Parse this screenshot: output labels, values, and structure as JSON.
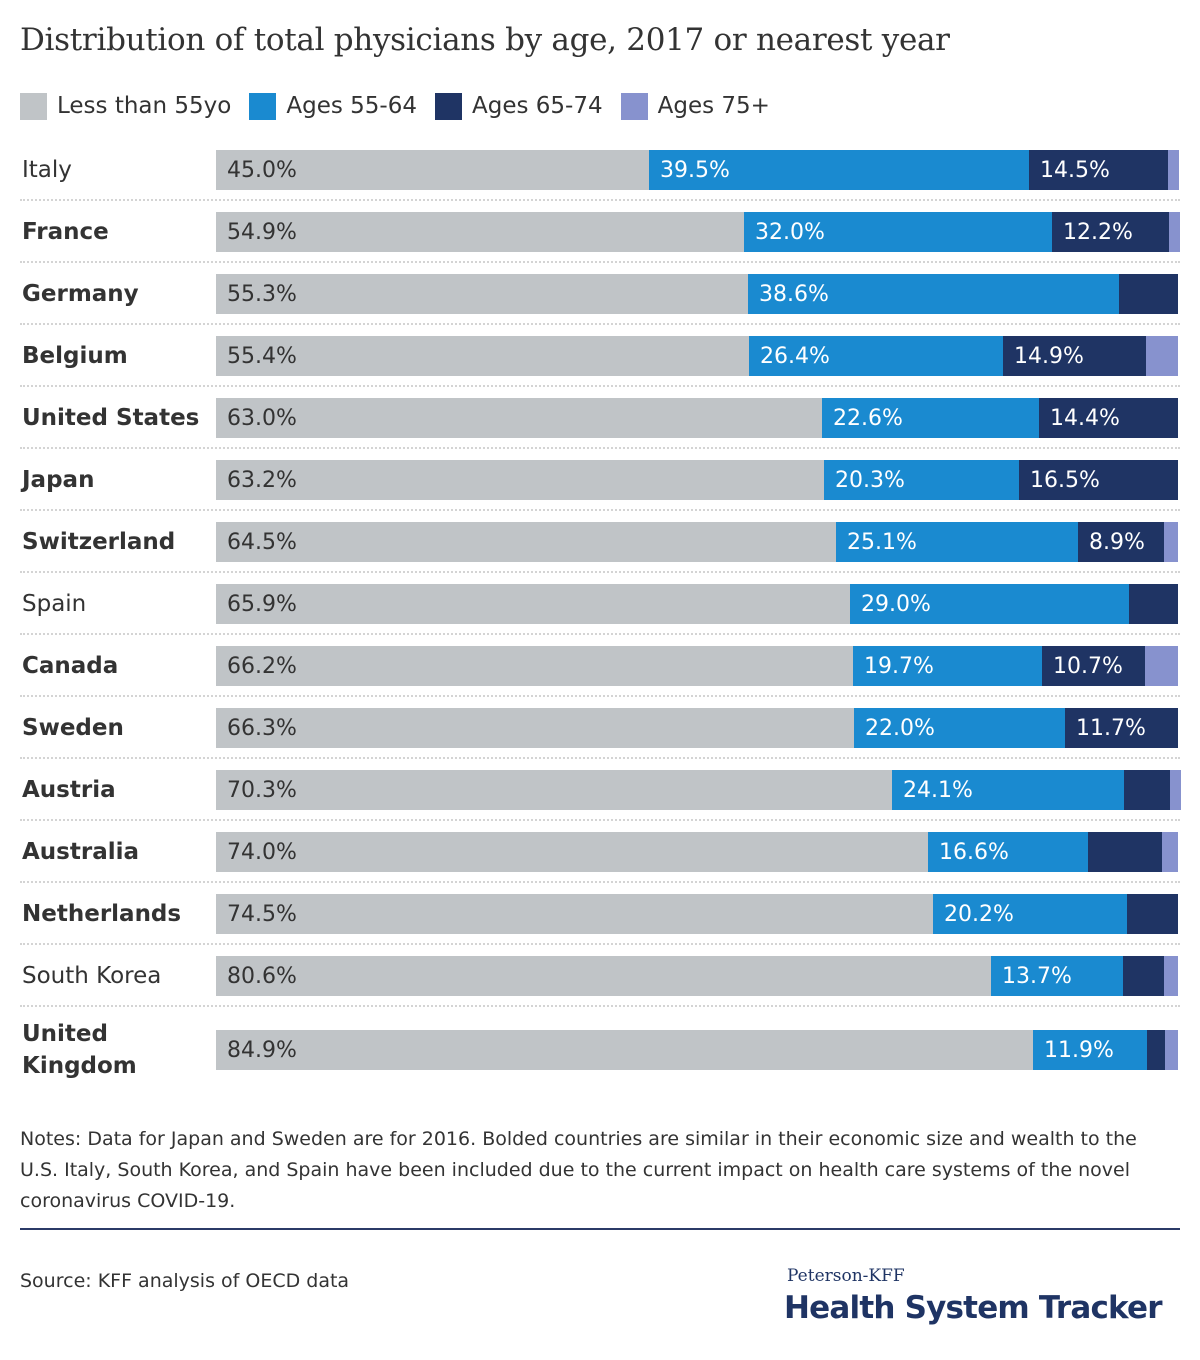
{
  "title": "Distribution of total physicians by age, 2017 or nearest year",
  "chart_data": {
    "type": "bar",
    "orientation": "horizontal",
    "stacked": true,
    "title": "Distribution of total physicians by age, 2017 or nearest year",
    "xlim": [
      0,
      100
    ],
    "legend_position": "top-left",
    "grid": false,
    "categories": [
      "Italy",
      "France",
      "Germany",
      "Belgium",
      "United States",
      "Japan",
      "Switzerland",
      "Spain",
      "Canada",
      "Sweden",
      "Austria",
      "Australia",
      "Netherlands",
      "South Korea",
      "United Kingdom"
    ],
    "bold_categories": [
      "France",
      "Germany",
      "Belgium",
      "United States",
      "Japan",
      "Switzerland",
      "Canada",
      "Sweden",
      "Austria",
      "Australia",
      "Netherlands",
      "United Kingdom"
    ],
    "series": [
      {
        "name": "Less than 55yo",
        "color": "#c0c4c7",
        "label_color": "#333333",
        "values": [
          45.0,
          54.9,
          55.3,
          55.4,
          63.0,
          63.2,
          64.5,
          65.9,
          66.2,
          66.3,
          70.3,
          74.0,
          74.5,
          80.6,
          84.9
        ],
        "labels": [
          "45.0%",
          "54.9%",
          "55.3%",
          "55.4%",
          "63.0%",
          "63.2%",
          "64.5%",
          "65.9%",
          "66.2%",
          "66.3%",
          "70.3%",
          "74.0%",
          "74.5%",
          "80.6%",
          "84.9%"
        ]
      },
      {
        "name": "Ages 55-64",
        "color": "#1a8ad0",
        "label_color": "#ffffff",
        "values": [
          39.5,
          32.0,
          38.6,
          26.4,
          22.6,
          20.3,
          25.1,
          29.0,
          19.7,
          22.0,
          24.1,
          16.6,
          20.2,
          13.7,
          11.9
        ],
        "labels": [
          "39.5%",
          "32.0%",
          "38.6%",
          "26.4%",
          "22.6%",
          "20.3%",
          "25.1%",
          "29.0%",
          "19.7%",
          "22.0%",
          "24.1%",
          "16.6%",
          "20.2%",
          "13.7%",
          "11.9%"
        ]
      },
      {
        "name": "Ages 65-74",
        "color": "#1f3464",
        "label_color": "#ffffff",
        "values": [
          14.5,
          12.2,
          6.1,
          14.9,
          14.4,
          16.5,
          8.9,
          5.1,
          10.7,
          11.7,
          4.8,
          7.7,
          5.3,
          4.2,
          1.8
        ],
        "labels": [
          "14.5%",
          "12.2%",
          "",
          "14.9%",
          "14.4%",
          "16.5%",
          "8.9%",
          "",
          "10.7%",
          "11.7%",
          "",
          "",
          "",
          "",
          ""
        ]
      },
      {
        "name": "Ages 75+",
        "color": "#8792ce",
        "label_color": "#ffffff",
        "values": [
          1.0,
          0.9,
          0.0,
          3.3,
          0.0,
          0.0,
          1.5,
          0.0,
          3.4,
          0.0,
          0.8,
          1.7,
          0.0,
          1.5,
          1.4
        ],
        "labels": [
          "",
          "",
          "",
          "",
          "",
          "",
          "",
          "",
          "",
          "",
          "",
          "",
          "",
          "",
          ""
        ]
      }
    ]
  },
  "notes": "Notes: Data for Japan and Sweden are for 2016. Bolded countries are similar in their economic size and wealth to the U.S. Italy, South Korea, and Spain have been included due to the current impact on health care systems of the novel coronavirus COVID-19.",
  "source": "Source: KFF analysis of OECD data",
  "brand": {
    "small": "Peterson-KFF",
    "big": "Health System Tracker"
  }
}
